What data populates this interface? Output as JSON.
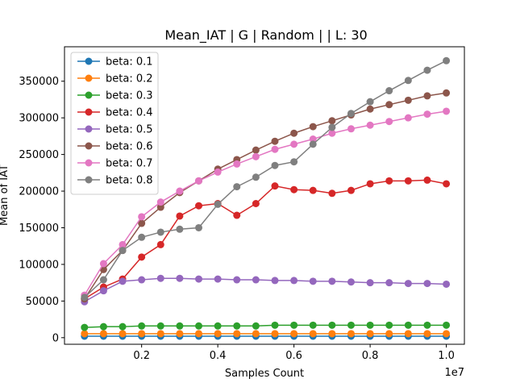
{
  "chart_data": {
    "type": "line",
    "title": "Mean_IAT  | G | Random |  | L: 30",
    "xlabel": "Samples Count",
    "ylabel": "Mean of IAT",
    "x_offset_text": "1e7",
    "xlim": [
      -0.0025,
      1.0475
    ],
    "ylim": [
      -9000,
      397000
    ],
    "xticks": [
      0.2,
      0.4,
      0.6,
      0.8,
      1.0
    ],
    "xtick_labels": [
      "0.2",
      "0.4",
      "0.6",
      "0.8",
      "1.0"
    ],
    "yticks": [
      0,
      50000,
      100000,
      150000,
      200000,
      250000,
      300000,
      350000
    ],
    "ytick_labels": [
      "0",
      "50000",
      "100000",
      "150000",
      "200000",
      "250000",
      "300000",
      "350000"
    ],
    "grid": false,
    "legend_position": "upper-left",
    "x": [
      0.05,
      0.1,
      0.15,
      0.2,
      0.25,
      0.3,
      0.35,
      0.4,
      0.45,
      0.5,
      0.55,
      0.6,
      0.65,
      0.7,
      0.75,
      0.8,
      0.85,
      0.9,
      0.95,
      1.0
    ],
    "series": [
      {
        "name": "beta: 0.1",
        "color": "#1f77b4",
        "values": [
          2000,
          2000,
          2000,
          2000,
          2000,
          2000,
          2000,
          2000,
          2000,
          2000,
          2000,
          2000,
          2000,
          2000,
          2000,
          2000,
          2000,
          2000,
          2000,
          2000
        ]
      },
      {
        "name": "beta: 0.2",
        "color": "#ff7f0e",
        "values": [
          5500,
          5500,
          5500,
          5500,
          5500,
          5500,
          5500,
          5500,
          5500,
          5500,
          5500,
          5500,
          5500,
          5500,
          5500,
          5500,
          5500,
          5500,
          5500,
          5500
        ]
      },
      {
        "name": "beta: 0.3",
        "color": "#2ca02c",
        "values": [
          14000,
          15000,
          15000,
          16000,
          16000,
          16000,
          16000,
          16000,
          16000,
          16000,
          17000,
          17000,
          17000,
          17000,
          17000,
          17000,
          17000,
          17000,
          17000,
          17000
        ]
      },
      {
        "name": "beta: 0.4",
        "color": "#d62728",
        "values": [
          53000,
          69000,
          80000,
          110000,
          127000,
          166000,
          180000,
          183000,
          167000,
          183000,
          207000,
          202000,
          201000,
          197000,
          201000,
          210000,
          214000,
          214000,
          215000,
          210000
        ]
      },
      {
        "name": "beta: 0.5",
        "color": "#9467bd",
        "values": [
          49000,
          64000,
          77000,
          79000,
          81000,
          81000,
          80000,
          80000,
          79000,
          79000,
          78000,
          78000,
          77000,
          77000,
          76000,
          75000,
          75000,
          74000,
          74000,
          73000
        ]
      },
      {
        "name": "beta: 0.6",
        "color": "#8c564b",
        "values": [
          53000,
          93000,
          119000,
          156000,
          178000,
          198000,
          214000,
          230000,
          243000,
          256000,
          268000,
          279000,
          288000,
          296000,
          304000,
          312000,
          318000,
          324000,
          330000,
          334000
        ]
      },
      {
        "name": "beta: 0.7",
        "color": "#e377c2",
        "values": [
          58000,
          101000,
          127000,
          165000,
          185000,
          200000,
          214000,
          226000,
          237000,
          247000,
          257000,
          264000,
          271000,
          279000,
          285000,
          290000,
          295000,
          300000,
          305000,
          309000
        ]
      },
      {
        "name": "beta: 0.8",
        "color": "#7f7f7f",
        "values": [
          55000,
          79000,
          119000,
          137000,
          144000,
          148000,
          150000,
          182000,
          206000,
          219000,
          235000,
          240000,
          264000,
          287000,
          306000,
          322000,
          337000,
          351000,
          365000,
          378000
        ]
      }
    ]
  }
}
